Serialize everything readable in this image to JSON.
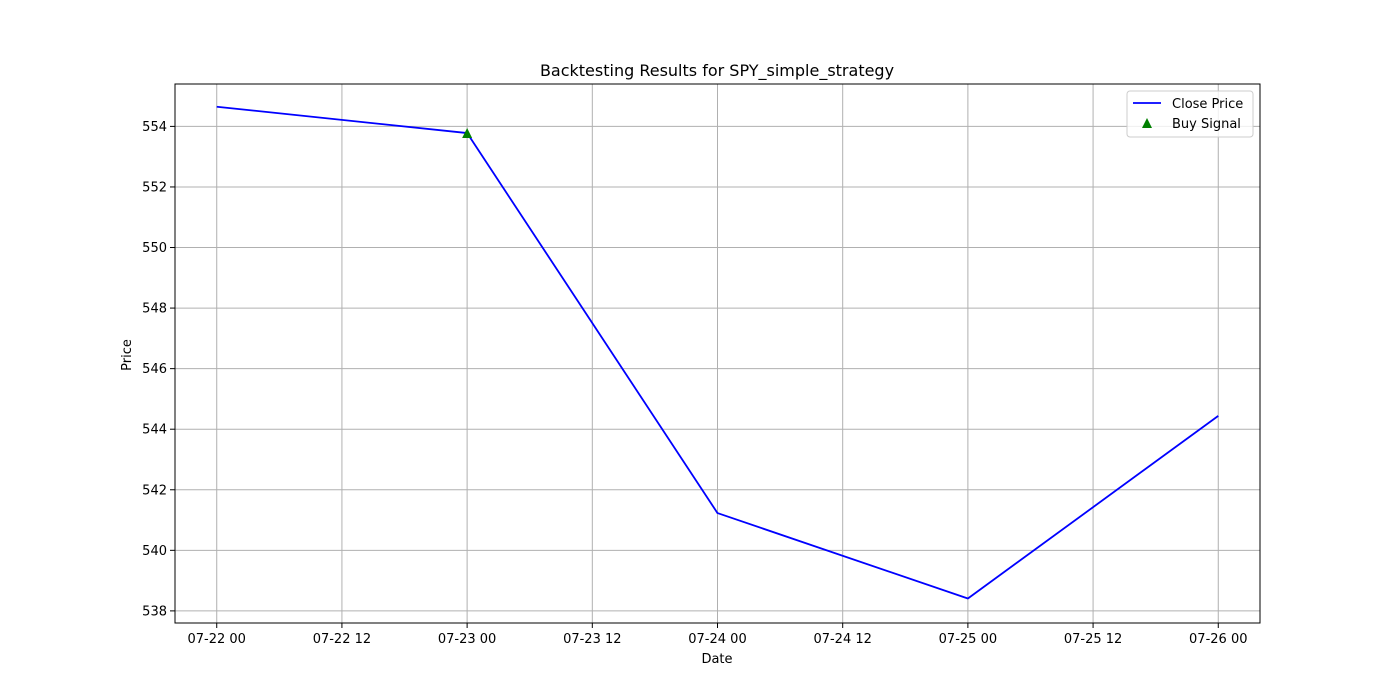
{
  "chart_data": {
    "type": "line",
    "title": "Backtesting Results for SPY_simple_strategy",
    "xlabel": "Date",
    "ylabel": "Price",
    "grid": true,
    "legend_position": "top-right",
    "x_ticks": [
      "07-22 00",
      "07-22 12",
      "07-23 00",
      "07-23 12",
      "07-24 00",
      "07-24 12",
      "07-25 00",
      "07-25 12",
      "07-26 00"
    ],
    "y_ticks": [
      538,
      540,
      542,
      544,
      546,
      548,
      550,
      552,
      554
    ],
    "xlim": [
      "2024-07-21T20:00",
      "2024-07-26T04:00"
    ],
    "ylim": [
      537.6,
      555.4
    ],
    "series": [
      {
        "name": "Close Price",
        "kind": "line",
        "color": "#0000ff",
        "x": [
          "2024-07-22T00:00",
          "2024-07-23T00:00",
          "2024-07-24T00:00",
          "2024-07-25T00:00",
          "2024-07-26T00:00"
        ],
        "y": [
          554.65,
          553.78,
          541.23,
          538.41,
          544.44
        ]
      },
      {
        "name": "Buy Signal",
        "kind": "scatter",
        "marker": "triangle-up",
        "color": "#008000",
        "x": [
          "2024-07-23T00:00"
        ],
        "y": [
          553.78
        ]
      }
    ]
  }
}
